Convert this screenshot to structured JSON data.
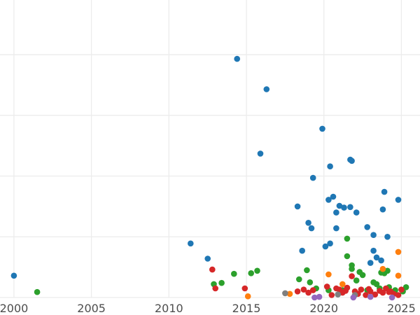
{
  "chart_data": {
    "type": "scatter",
    "title": "",
    "xlabel": "",
    "ylabel": "",
    "xlim": [
      1999.1,
      2026.2
    ],
    "ylim": [
      0,
      490
    ],
    "x_ticks": [
      2000,
      2005,
      2010,
      2015,
      2020,
      2025
    ],
    "y_gridlines": [
      0,
      100,
      200,
      300,
      400
    ],
    "y_tick_labels_visible": false,
    "grid": "on",
    "legend": "none",
    "series": [
      {
        "color": "#1f77b4",
        "points": [
          [
            2000.0,
            36
          ],
          [
            2011.4,
            89
          ],
          [
            2012.5,
            64
          ],
          [
            2014.4,
            393
          ],
          [
            2015.9,
            237
          ],
          [
            2016.3,
            343
          ],
          [
            2018.3,
            150
          ],
          [
            2018.6,
            77
          ],
          [
            2019.0,
            123
          ],
          [
            2019.2,
            114
          ],
          [
            2019.3,
            197
          ],
          [
            2019.9,
            278
          ],
          [
            2020.1,
            84
          ],
          [
            2020.3,
            161
          ],
          [
            2020.4,
            216
          ],
          [
            2020.4,
            89
          ],
          [
            2020.6,
            166
          ],
          [
            2020.8,
            140
          ],
          [
            2020.8,
            114
          ],
          [
            2021.0,
            151
          ],
          [
            2021.3,
            148
          ],
          [
            2021.7,
            227
          ],
          [
            2021.7,
            149
          ],
          [
            2021.8,
            225
          ],
          [
            2022.1,
            140
          ],
          [
            2022.8,
            116
          ],
          [
            2023.0,
            57
          ],
          [
            2023.2,
            103
          ],
          [
            2023.2,
            77
          ],
          [
            2023.4,
            66
          ],
          [
            2023.7,
            61
          ],
          [
            2023.8,
            145
          ],
          [
            2023.9,
            174
          ],
          [
            2024.1,
            100
          ],
          [
            2024.8,
            161
          ]
        ]
      },
      {
        "color": "#2ca02c",
        "points": [
          [
            2001.5,
            9
          ],
          [
            2012.9,
            22
          ],
          [
            2013.4,
            24
          ],
          [
            2014.2,
            39
          ],
          [
            2015.3,
            40
          ],
          [
            2015.7,
            44
          ],
          [
            2018.4,
            30
          ],
          [
            2018.9,
            45
          ],
          [
            2019.1,
            25
          ],
          [
            2019.5,
            15
          ],
          [
            2020.3,
            12
          ],
          [
            2021.2,
            12
          ],
          [
            2021.5,
            97
          ],
          [
            2021.5,
            68
          ],
          [
            2021.8,
            53
          ],
          [
            2021.8,
            47
          ],
          [
            2022.1,
            28
          ],
          [
            2022.3,
            42
          ],
          [
            2022.5,
            37
          ],
          [
            2022.8,
            12
          ],
          [
            2023.2,
            25
          ],
          [
            2023.4,
            22
          ],
          [
            2023.6,
            15
          ],
          [
            2023.7,
            41
          ],
          [
            2023.9,
            40
          ],
          [
            2024.1,
            44
          ],
          [
            2024.2,
            17
          ],
          [
            2024.6,
            12
          ],
          [
            2025.1,
            10
          ],
          [
            2025.3,
            17
          ]
        ]
      },
      {
        "color": "#d62728",
        "points": [
          [
            2012.8,
            46
          ],
          [
            2013.0,
            15
          ],
          [
            2014.9,
            15
          ],
          [
            2018.3,
            10
          ],
          [
            2018.7,
            13
          ],
          [
            2019.0,
            8
          ],
          [
            2019.3,
            12
          ],
          [
            2020.2,
            18
          ],
          [
            2020.5,
            4
          ],
          [
            2020.8,
            15
          ],
          [
            2021.0,
            13
          ],
          [
            2021.2,
            8
          ],
          [
            2021.5,
            16
          ],
          [
            2021.8,
            35
          ],
          [
            2022.0,
            10
          ],
          [
            2022.2,
            6
          ],
          [
            2022.4,
            13
          ],
          [
            2022.7,
            4
          ],
          [
            2023.0,
            10
          ],
          [
            2023.3,
            5
          ],
          [
            2023.6,
            11
          ],
          [
            2023.8,
            8
          ],
          [
            2024.0,
            15
          ],
          [
            2024.3,
            10
          ],
          [
            2024.5,
            6
          ],
          [
            2024.8,
            4
          ],
          [
            2025.0,
            13
          ],
          [
            2021.4,
            11
          ],
          [
            2022.9,
            14
          ],
          [
            2024.2,
            9
          ]
        ]
      },
      {
        "color": "#ff7f0e",
        "points": [
          [
            2015.1,
            2
          ],
          [
            2017.8,
            6
          ],
          [
            2020.3,
            38
          ],
          [
            2021.2,
            22
          ],
          [
            2023.8,
            47
          ],
          [
            2024.8,
            75
          ],
          [
            2024.8,
            36
          ]
        ]
      },
      {
        "color": "#7f7f7f",
        "points": [
          [
            2017.5,
            7
          ],
          [
            2020.9,
            5
          ],
          [
            2022.0,
            4
          ]
        ]
      },
      {
        "color": "#9467bd",
        "points": [
          [
            2019.4,
            0
          ],
          [
            2019.7,
            1
          ],
          [
            2021.9,
            0
          ],
          [
            2023.0,
            1
          ],
          [
            2024.4,
            0
          ]
        ]
      }
    ]
  }
}
